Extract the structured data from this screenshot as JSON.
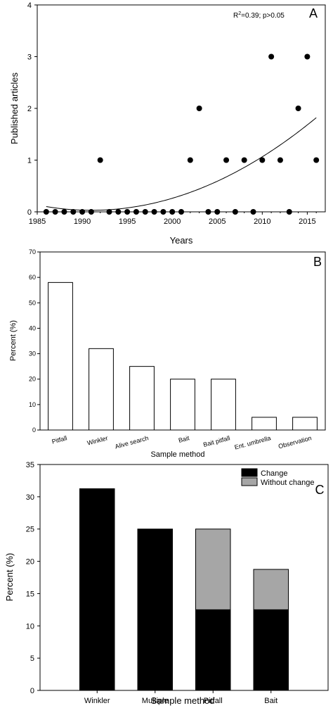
{
  "chart_data": [
    {
      "type": "scatter",
      "panel_label": "A",
      "annotation": {
        "r": "R",
        "sup": "2",
        "rest": "=0.39; p>0.05"
      },
      "xlabel": "Years",
      "ylabel": "Published articles",
      "xlim": [
        1985,
        2017
      ],
      "ylim": [
        0,
        4
      ],
      "xticks": [
        1985,
        1990,
        1995,
        2000,
        2005,
        2010,
        2015
      ],
      "yticks": [
        0,
        1,
        2,
        3,
        4
      ],
      "points": [
        [
          1986,
          0
        ],
        [
          1987,
          0
        ],
        [
          1988,
          0
        ],
        [
          1989,
          0
        ],
        [
          1990,
          0
        ],
        [
          1991,
          0
        ],
        [
          1992,
          1
        ],
        [
          1993,
          0
        ],
        [
          1994,
          0
        ],
        [
          1995,
          0
        ],
        [
          1996,
          0
        ],
        [
          1997,
          0
        ],
        [
          1998,
          0
        ],
        [
          1999,
          0
        ],
        [
          2000,
          0
        ],
        [
          2001,
          0
        ],
        [
          2002,
          1
        ],
        [
          2003,
          2
        ],
        [
          2004,
          0
        ],
        [
          2005,
          0
        ],
        [
          2006,
          1
        ],
        [
          2007,
          0
        ],
        [
          2008,
          1
        ],
        [
          2009,
          0
        ],
        [
          2010,
          1
        ],
        [
          2011,
          3
        ],
        [
          2012,
          1
        ],
        [
          2013,
          0
        ],
        [
          2014,
          2
        ],
        [
          2015,
          3
        ],
        [
          2016,
          1
        ]
      ],
      "trend": {
        "type": "quadratic",
        "x_range": [
          1986,
          2016
        ],
        "y_at_start": 0.12,
        "x_min": 1991,
        "y_min": 0.03,
        "y_at_end": 1.82
      }
    },
    {
      "type": "bar",
      "panel_label": "B",
      "xlabel": "Sample method",
      "ylabel": "Percent (%)",
      "ylim": [
        0,
        70
      ],
      "yticks": [
        0,
        10,
        20,
        30,
        40,
        50,
        60,
        70
      ],
      "categories": [
        "Pitfall",
        "Winkler",
        "Alive search",
        "Bait",
        "Bait pitfall",
        "Ent. umbrella",
        "Observation"
      ],
      "values": [
        58,
        32,
        25,
        20,
        20,
        5,
        5
      ],
      "bar_fill": "#ffffff"
    },
    {
      "type": "bar",
      "stacked": true,
      "panel_label": "C",
      "xlabel": "Sample method",
      "ylabel": "Percent (%)",
      "ylim": [
        0,
        35
      ],
      "yticks": [
        0,
        5,
        10,
        15,
        20,
        25,
        30,
        35
      ],
      "categories": [
        "Winkler",
        "Multiple",
        "Pitfall",
        "Bait"
      ],
      "series": [
        {
          "name": "Change",
          "color": "#000000",
          "values": [
            31.25,
            25,
            12.5,
            12.5
          ]
        },
        {
          "name": "Without change",
          "color": "#a6a6a6",
          "values": [
            0,
            0,
            12.5,
            6.25
          ]
        }
      ],
      "legend": "top-right"
    }
  ]
}
